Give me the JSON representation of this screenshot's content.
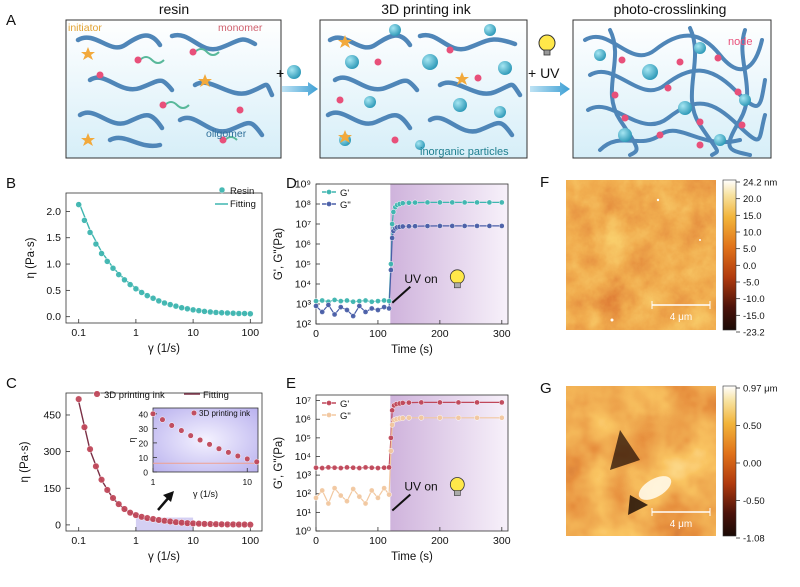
{
  "colors": {
    "teal": "#3fb6b0",
    "navy": "#4a5fa8",
    "crimson": "#c0485a",
    "peach": "#f2c8a0",
    "chain": "#4f86b8",
    "particle": "#3aa9c4",
    "monomer": "#58b89a",
    "node": "#e8507a",
    "star": "#f2a93b",
    "uvband": "#d9c0e0",
    "inset": "#c9c3f0"
  },
  "panel_a": {
    "letter": "A",
    "stage1_title": "resin",
    "stage2_title": "3D printing ink",
    "stage3_title": "photo-crosslinking",
    "plus_particle": "+",
    "plus_uv": "+ UV",
    "label_initiator": "initiator",
    "label_monomer": "monomer",
    "label_oligomer": "oligomer",
    "label_particles": "inorganic particles",
    "label_node": "node"
  },
  "chart_data": [
    {
      "id": "B",
      "letter": "B",
      "type": "scatter",
      "title": "",
      "xlabel": "γ (1/s)",
      "ylabel": "η (Pa·s)",
      "xscale": "log",
      "xlim": [
        0.06,
        160
      ],
      "ylim": [
        -0.12,
        2.35
      ],
      "xticks": [
        0.1,
        1,
        10,
        100
      ],
      "xtick_labels": [
        "0.1",
        "1",
        "10",
        "100"
      ],
      "yticks": [
        0.0,
        0.5,
        1.0,
        1.5,
        2.0
      ],
      "ytick_labels": [
        "0.0",
        "0.5",
        "1.0",
        "1.5",
        "2.0"
      ],
      "legend": [
        "Resin",
        "Fitting"
      ],
      "legend_position": "top-right",
      "series": [
        {
          "name": "Resin",
          "x": [
            0.1,
            0.126,
            0.158,
            0.2,
            0.251,
            0.316,
            0.398,
            0.501,
            0.631,
            0.794,
            1.0,
            1.26,
            1.58,
            2.0,
            2.51,
            3.16,
            3.98,
            5.01,
            6.31,
            7.94,
            10.0,
            12.6,
            15.8,
            20.0,
            25.1,
            31.6,
            39.8,
            50.1,
            63.1,
            79.4,
            100
          ],
          "y": [
            2.13,
            1.83,
            1.6,
            1.38,
            1.2,
            1.05,
            0.92,
            0.8,
            0.7,
            0.61,
            0.53,
            0.46,
            0.4,
            0.35,
            0.3,
            0.26,
            0.23,
            0.2,
            0.17,
            0.15,
            0.13,
            0.115,
            0.1,
            0.09,
            0.08,
            0.075,
            0.07,
            0.065,
            0.06,
            0.06,
            0.055
          ]
        },
        {
          "name": "Fitting",
          "x": [
            0.1,
            0.158,
            0.251,
            0.398,
            0.631,
            1.0,
            1.58,
            2.51,
            3.98,
            6.31,
            10.0,
            15.8,
            25.1,
            39.8,
            63.1,
            100
          ],
          "y": [
            2.18,
            1.64,
            1.23,
            0.93,
            0.71,
            0.54,
            0.41,
            0.31,
            0.235,
            0.175,
            0.135,
            0.105,
            0.085,
            0.072,
            0.062,
            0.057
          ]
        }
      ]
    },
    {
      "id": "C",
      "letter": "C",
      "type": "scatter",
      "title": "",
      "xlabel": "γ (1/s)",
      "ylabel": "η (Pa·s)",
      "xscale": "log",
      "xlim": [
        0.06,
        160
      ],
      "ylim": [
        -25,
        540
      ],
      "xticks": [
        0.1,
        1,
        10,
        100
      ],
      "xtick_labels": [
        "0.1",
        "1",
        "10",
        "100"
      ],
      "yticks": [
        0,
        150,
        300,
        450
      ],
      "ytick_labels": [
        "0",
        "150",
        "300",
        "450"
      ],
      "legend": [
        "3D printing ink",
        "Fitting"
      ],
      "legend_position": "top",
      "highlight_x": [
        1,
        10
      ],
      "series": [
        {
          "name": "3D printing ink",
          "x": [
            0.1,
            0.126,
            0.158,
            0.2,
            0.251,
            0.316,
            0.398,
            0.501,
            0.631,
            0.794,
            1.0,
            1.26,
            1.58,
            2.0,
            2.51,
            3.16,
            3.98,
            5.01,
            6.31,
            7.94,
            10.0,
            12.6,
            15.8,
            20.0,
            25.1,
            31.6,
            39.8,
            50.1,
            63.1,
            79.4,
            100
          ],
          "y": [
            515,
            400,
            310,
            240,
            185,
            143,
            110,
            85,
            65,
            50,
            40,
            33,
            28,
            24,
            20,
            17,
            14,
            11,
            9,
            7,
            6,
            5,
            4,
            3.5,
            3,
            2.5,
            2,
            2,
            1.5,
            1.5,
            1
          ]
        },
        {
          "name": "Fitting",
          "x": [
            0.1,
            0.158,
            0.251,
            0.398,
            0.631,
            1.0,
            1.58,
            2.51,
            3.98,
            6.31,
            10.0,
            15.8,
            25.1,
            39.8,
            63.1,
            100
          ],
          "y": [
            505,
            305,
            183,
            108,
            64,
            38,
            23,
            14,
            9,
            6,
            4,
            3,
            2.5,
            2,
            1.5,
            1
          ]
        }
      ],
      "inset": {
        "legend": [
          "3D printing ink"
        ],
        "xlabel": "γ (1/s)",
        "ylabel": "η",
        "xscale": "log",
        "xlim": [
          1,
          13
        ],
        "ylim": [
          0,
          44
        ],
        "xticks": [
          1,
          10
        ],
        "xtick_labels": [
          "1",
          "10"
        ],
        "yticks": [
          0,
          10,
          20,
          30,
          40
        ],
        "ytick_labels": [
          "0",
          "10",
          "20",
          "30",
          "40"
        ],
        "series": [
          {
            "name": "3D printing ink",
            "x": [
              1.0,
              1.26,
              1.58,
              2.0,
              2.51,
              3.16,
              3.98,
              5.01,
              6.31,
              7.94,
              10.0,
              12.6
            ],
            "y": [
              40,
              36,
              32,
              28.5,
              25,
              22,
              19,
              16,
              13.5,
              11,
              9,
              7
            ]
          },
          {
            "name": "Fitting",
            "x": [
              1,
              13
            ],
            "y": [
              6,
              6
            ]
          }
        ]
      }
    },
    {
      "id": "D",
      "letter": "D",
      "type": "line",
      "title": "",
      "xlabel": "Time (s)",
      "ylabel": "G', G\"(Pa)",
      "yscale": "log",
      "xlim": [
        0,
        310
      ],
      "ylim": [
        100,
        1000000000
      ],
      "xticks": [
        0,
        100,
        200,
        300
      ],
      "xtick_labels": [
        "0",
        "100",
        "200",
        "300"
      ],
      "yticks": [
        100,
        1000,
        10000,
        100000,
        1000000,
        10000000,
        100000000,
        1000000000
      ],
      "ytick_labels": [
        "10²",
        "10³",
        "10⁴",
        "10⁵",
        "10⁶",
        "10⁷",
        "10⁸",
        "10⁹"
      ],
      "uv_start": 120,
      "annotation": "UV on",
      "legend": [
        "G'",
        "G\""
      ],
      "legend_position": "top-left",
      "series": [
        {
          "name": "G'",
          "x": [
            0,
            10,
            20,
            30,
            40,
            50,
            60,
            70,
            80,
            90,
            100,
            110,
            118,
            121,
            123,
            125,
            128,
            131,
            135,
            140,
            150,
            160,
            180,
            200,
            220,
            240,
            260,
            280,
            300
          ],
          "y": [
            1400,
            1500,
            1300,
            1600,
            1400,
            1500,
            1300,
            1400,
            1500,
            1300,
            1400,
            1500,
            1400,
            100000,
            10000000,
            40000000,
            70000000,
            90000000,
            100000000,
            110000000,
            115000000,
            118000000,
            120000000,
            120000000,
            120000000,
            120000000,
            120000000,
            120000000,
            120000000
          ]
        },
        {
          "name": "G\"",
          "x": [
            0,
            10,
            20,
            30,
            40,
            50,
            60,
            70,
            80,
            90,
            100,
            110,
            118,
            121,
            123,
            125,
            128,
            131,
            135,
            140,
            150,
            160,
            180,
            200,
            220,
            240,
            260,
            280,
            300
          ],
          "y": [
            800,
            400,
            900,
            300,
            700,
            500,
            250,
            800,
            400,
            600,
            500,
            700,
            600,
            50000,
            2000000,
            4500000,
            6000000,
            6800000,
            7200000,
            7500000,
            7700000,
            7800000,
            7900000,
            8000000,
            8000000,
            8000000,
            8000000,
            8000000,
            8000000
          ]
        }
      ]
    },
    {
      "id": "E",
      "letter": "E",
      "type": "line",
      "title": "",
      "xlabel": "Time (s)",
      "ylabel": "G', G\"(Pa)",
      "yscale": "log",
      "xlim": [
        0,
        310
      ],
      "ylim": [
        1,
        20000000
      ],
      "xticks": [
        0,
        100,
        200,
        300
      ],
      "xtick_labels": [
        "0",
        "100",
        "200",
        "300"
      ],
      "yticks": [
        1,
        10,
        100,
        1000,
        10000,
        100000,
        1000000,
        10000000
      ],
      "ytick_labels": [
        "10⁰",
        "10¹",
        "10²",
        "10³",
        "10⁴",
        "10⁵",
        "10⁶",
        "10⁷"
      ],
      "uv_start": 120,
      "annotation": "UV on",
      "legend": [
        "G'",
        "G\""
      ],
      "legend_position": "top-left",
      "series": [
        {
          "name": "G'",
          "x": [
            0,
            10,
            20,
            30,
            40,
            50,
            60,
            70,
            80,
            90,
            100,
            110,
            118,
            121,
            123,
            126,
            130,
            135,
            140,
            150,
            170,
            200,
            230,
            260,
            300
          ],
          "y": [
            2500,
            2400,
            2600,
            2500,
            2400,
            2600,
            2500,
            2400,
            2600,
            2500,
            2400,
            2500,
            2600,
            100000,
            3000000,
            5500000,
            6500000,
            7000000,
            7500000,
            7800000,
            8000000,
            8000000,
            8000000,
            8000000,
            8000000
          ]
        },
        {
          "name": "G\"",
          "x": [
            0,
            10,
            20,
            30,
            40,
            50,
            60,
            70,
            80,
            90,
            100,
            110,
            118,
            121,
            123,
            126,
            130,
            135,
            140,
            150,
            170,
            200,
            230,
            260,
            300
          ],
          "y": [
            60,
            150,
            30,
            200,
            80,
            40,
            180,
            70,
            30,
            150,
            60,
            200,
            90,
            20000,
            500000,
            900000,
            1000000,
            1100000,
            1150000,
            1200000,
            1200000,
            1200000,
            1200000,
            1200000,
            1200000
          ]
        }
      ]
    },
    {
      "id": "F",
      "letter": "F",
      "type": "heatmap",
      "colorbar_ticks": [
        "24.2 nm",
        "20.0",
        "15.0",
        "10.0",
        "5.0",
        "0.0",
        "-5.0",
        "-10.0",
        "-15.0",
        "-23.2"
      ],
      "scale_bar": "4 μm"
    },
    {
      "id": "G",
      "letter": "G",
      "type": "heatmap",
      "colorbar_ticks": [
        "0.97 μm",
        "0.50",
        "0.00",
        "-0.50",
        "-1.08"
      ],
      "scale_bar": "4 μm"
    }
  ]
}
